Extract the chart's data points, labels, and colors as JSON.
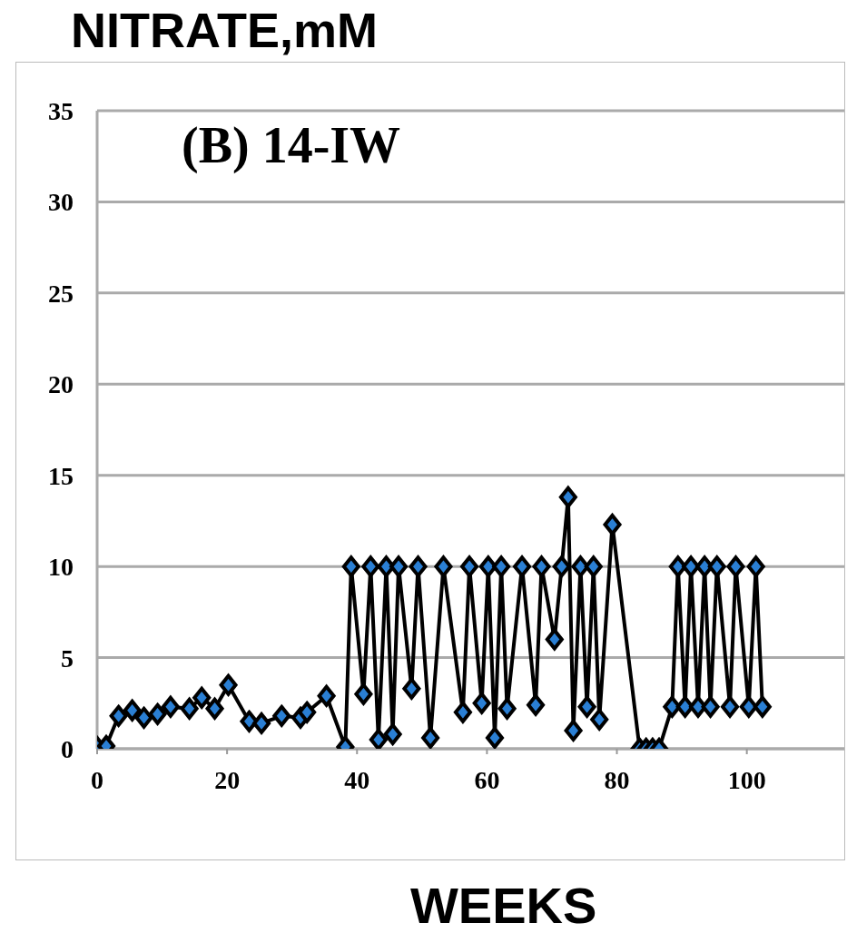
{
  "chart_data": {
    "type": "line",
    "title": "(B) 14-IW",
    "xlabel": "WEEKS",
    "ylabel": "NITRATE,mM",
    "x": [
      0,
      1.4,
      3.3,
      5.4,
      7.2,
      9.3,
      11.3,
      14.2,
      16.1,
      18.1,
      20.2,
      23.4,
      25.3,
      28.4,
      31.3,
      32.3,
      35.3,
      38.2,
      39.1,
      41,
      42.1,
      43.3,
      44.5,
      45.5,
      46.4,
      48.4,
      49.4,
      51.3,
      53.3,
      56.3,
      57.3,
      59.2,
      60.2,
      61.2,
      62.2,
      63.1,
      65.4,
      67.5,
      68.4,
      70.4,
      71.5,
      72.5,
      73.3,
      74.4,
      75.4,
      76.4,
      77.3,
      79.3,
      83.5,
      84.5,
      85.5,
      86.5,
      88.5,
      89.4,
      90.5,
      91.4,
      92.5,
      93.5,
      94.4,
      95.4,
      97.4,
      98.3,
      100.3,
      101.4,
      102.4
    ],
    "series": [
      {
        "color": "#000000",
        "values": [
          0.1,
          0.15,
          1.8,
          2.1,
          1.7,
          1.9,
          2.3,
          2.2,
          2.8,
          2.2,
          3.5,
          1.5,
          1.4,
          1.8,
          1.7,
          2.0,
          2.9,
          0.1,
          10,
          3.0,
          10,
          0.5,
          10,
          0.8,
          10,
          3.3,
          10,
          0.6,
          10,
          2.0,
          10,
          2.5,
          10,
          0.6,
          10,
          2.2,
          10,
          2.4,
          10,
          6.0,
          10,
          13.8,
          1.0,
          10,
          2.3,
          10,
          1.6,
          12.3,
          0,
          0,
          0,
          0,
          2.3,
          10,
          2.3,
          10,
          2.3,
          10,
          2.3,
          10,
          2.3,
          10,
          2.3,
          10,
          2.3
        ]
      }
    ],
    "xlim": [
      0,
      115
    ],
    "xticks": [
      0,
      20,
      40,
      60,
      80,
      100
    ],
    "ylim": [
      0,
      35
    ],
    "yticks": [
      0,
      5,
      10,
      15,
      20,
      25,
      30,
      35
    ],
    "grid": "y",
    "marker": "diamond",
    "line_style": "solid"
  }
}
